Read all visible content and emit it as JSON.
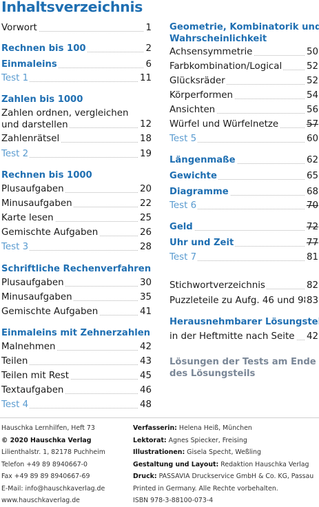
{
  "title": "Inhaltsverzeichnis",
  "left": [
    {
      "id": "vorwort",
      "label": "Vorwort",
      "page": "1"
    },
    {
      "id": "rechnen-bis-100",
      "label": "Rechnen bis 100",
      "page": "2"
    },
    {
      "id": "einmaleins",
      "label": "Einmaleins",
      "page": "6"
    },
    {
      "id": "test-1",
      "label": "Test 1",
      "page": "11"
    },
    {
      "id": "zahlen-bis-1000",
      "label": "Zahlen bis 1000"
    },
    {
      "id": "zahlen-ordnen-l1",
      "label": "Zahlen ordnen, vergleichen"
    },
    {
      "id": "zahlen-ordnen-l2",
      "label": "und darstellen",
      "page": "12"
    },
    {
      "id": "zahlenraetsel",
      "label": "Zahlenrätsel",
      "page": "18"
    },
    {
      "id": "test-2",
      "label": "Test 2",
      "page": "19"
    },
    {
      "id": "rechnen-bis-1000",
      "label": "Rechnen bis 1000"
    },
    {
      "id": "plusaufgaben-1",
      "label": "Plusaufgaben",
      "page": "20"
    },
    {
      "id": "minusaufgaben-1",
      "label": "Minusaufgaben",
      "page": "22"
    },
    {
      "id": "karte-lesen",
      "label": "Karte lesen",
      "page": "25"
    },
    {
      "id": "gemischte-1",
      "label": "Gemischte Aufgaben",
      "page": "26"
    },
    {
      "id": "test-3",
      "label": "Test 3",
      "page": "28"
    },
    {
      "id": "schriftliche",
      "label": "Schriftliche Rechenverfahren"
    },
    {
      "id": "plusaufgaben-2",
      "label": "Plusaufgaben",
      "page": "30"
    },
    {
      "id": "minusaufgaben-2",
      "label": "Minusaufgaben",
      "page": "35"
    },
    {
      "id": "gemischte-2",
      "label": "Gemischte Aufgaben",
      "page": "41"
    },
    {
      "id": "einmaleins-zehner",
      "label": "Einmaleins mit Zehnerzahlen"
    },
    {
      "id": "malnehmen",
      "label": "Malnehmen",
      "page": "42"
    },
    {
      "id": "teilen",
      "label": "Teilen",
      "page": "43"
    },
    {
      "id": "teilen-rest",
      "label": "Teilen mit Rest",
      "page": "45"
    },
    {
      "id": "textaufgaben",
      "label": "Textaufgaben",
      "page": "46"
    },
    {
      "id": "test-4",
      "label": "Test 4",
      "page": "48"
    }
  ],
  "right": [
    {
      "id": "geometrie-l1",
      "label": "Geometrie, Kombinatorik und"
    },
    {
      "id": "geometrie-l2",
      "label": "Wahrscheinlichkeit"
    },
    {
      "id": "achsensymmetrie",
      "label": "Achsensymmetrie",
      "page": "50"
    },
    {
      "id": "farbkombination",
      "label": "Farbkombination/Logical",
      "page": "52"
    },
    {
      "id": "gluecksraeder",
      "label": "Glücksräder",
      "page": "52"
    },
    {
      "id": "koerperformen",
      "label": "Körperformen",
      "page": "54"
    },
    {
      "id": "ansichten",
      "label": "Ansichten",
      "page": "56"
    },
    {
      "id": "wuerfel",
      "label": "Würfel und Würfelnetze",
      "page": "57"
    },
    {
      "id": "test-5",
      "label": "Test 5",
      "page": "60"
    },
    {
      "id": "laengenmasse",
      "label": "Längenmaße",
      "page": "62"
    },
    {
      "id": "gewichte",
      "label": "Gewichte",
      "page": "65"
    },
    {
      "id": "diagramme",
      "label": "Diagramme",
      "page": "68"
    },
    {
      "id": "test-6",
      "label": "Test 6",
      "page": "70"
    },
    {
      "id": "geld",
      "label": "Geld",
      "page": "72"
    },
    {
      "id": "uhr-zeit",
      "label": "Uhr und Zeit",
      "page": "77"
    },
    {
      "id": "test-7",
      "label": "Test 7",
      "page": "81"
    },
    {
      "id": "stichwort",
      "label": "Stichwortverzeichnis",
      "page": "82"
    },
    {
      "id": "puzzleteile",
      "label": "Puzzleteile zu Aufg. 46 und 98",
      "page": "83"
    },
    {
      "id": "herausnehmbar",
      "label": "Herausnehmbarer Lösungsteil"
    },
    {
      "id": "heftmitte",
      "label": "in der Heftmitte nach Seite",
      "page": "42"
    },
    {
      "id": "loesungen-l1",
      "label": "Lösungen der Tests am Ende"
    },
    {
      "id": "loesungen-l2",
      "label": "des Lösungsteils"
    }
  ],
  "imprint_left": [
    "Hauschka Lernhilfen, Heft 73",
    "© 2020 Hauschka Verlag",
    "Lilienthalstr. 1, 82178 Puchheim",
    "Telefon +49 89 8940667-0",
    "Fax +49 89 89 8940667-69",
    "E-Mail: info@hauschkaverlag.de",
    "www.hauschkaverlag.de"
  ],
  "imprint_right": [
    {
      "key": "Verfasserin:",
      "value": " Helena Heiß, München"
    },
    {
      "key": "Lektorat:",
      "value": " Agnes Spiecker, Freising"
    },
    {
      "key": "Illustrationen:",
      "value": " Gisela Specht, Weßling"
    },
    {
      "key": "Gestaltung und Layout:",
      "value": " Redaktion Hauschka Verlag"
    },
    {
      "key": "Druck:",
      "value": " PASSAVIA Druckservice GmbH & Co. KG, Passau"
    },
    {
      "key": "",
      "value": "Printed in Germany. Alle Rechte vorbehalten."
    },
    {
      "key": "",
      "value": "ISBN 978-3-88100-073-4"
    }
  ],
  "colors": {
    "heading": "#1f6fb2",
    "test": "#5a9bd0",
    "gray_heading": "#7a8797"
  }
}
